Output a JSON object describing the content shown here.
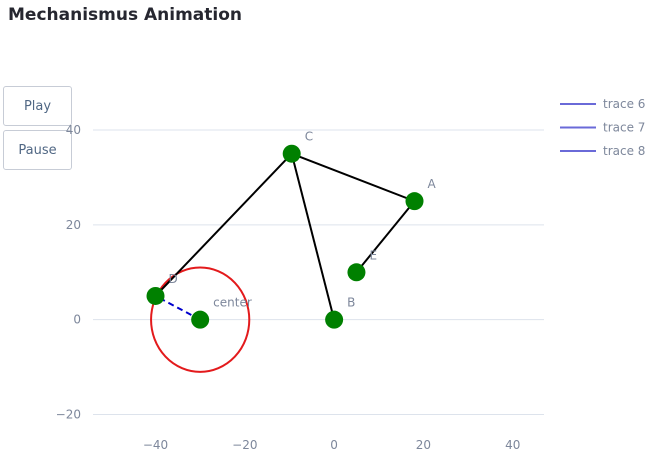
{
  "title": "Mechanismus Animation",
  "controls": {
    "play_label": "Play",
    "pause_label": "Pause"
  },
  "colors": {
    "link": "#000000",
    "joint": "#008000",
    "circle": "#e31a1c",
    "dash": "#0000cd",
    "legend": "#6a6ad8",
    "grid": "#dde3ec"
  },
  "chart_data": {
    "type": "scatter",
    "title": "Mechanismus Animation",
    "xlim": [
      -54,
      47
    ],
    "ylim": [
      -22,
      40
    ],
    "x_ticks": [
      {
        "value": -40,
        "label": "−40"
      },
      {
        "value": -20,
        "label": "−20"
      },
      {
        "value": 0,
        "label": "0"
      },
      {
        "value": 20,
        "label": "20"
      },
      {
        "value": 40,
        "label": "40"
      }
    ],
    "y_ticks": [
      {
        "value": -20,
        "label": "−20"
      },
      {
        "value": 0,
        "label": "0"
      },
      {
        "value": 20,
        "label": "20"
      },
      {
        "value": 40,
        "label": "40"
      }
    ],
    "grid": true,
    "legend_position": "top-right",
    "legend": [
      "trace 6",
      "trace 7",
      "trace 8"
    ],
    "points": [
      {
        "label": "C",
        "x": -9.5,
        "y": 35
      },
      {
        "label": "A",
        "x": 18,
        "y": 25
      },
      {
        "label": "E",
        "x": 5,
        "y": 10
      },
      {
        "label": "D",
        "x": -40,
        "y": 5
      },
      {
        "label": "center",
        "x": -30,
        "y": 0
      },
      {
        "label": "B",
        "x": 0,
        "y": 0
      }
    ],
    "links": [
      [
        "D",
        "C"
      ],
      [
        "C",
        "A"
      ],
      [
        "A",
        "E"
      ],
      [
        "C",
        "B"
      ]
    ],
    "crank": {
      "from": "center",
      "to": "D"
    },
    "circle": {
      "center": [
        -30,
        0
      ],
      "radius": 11
    }
  }
}
